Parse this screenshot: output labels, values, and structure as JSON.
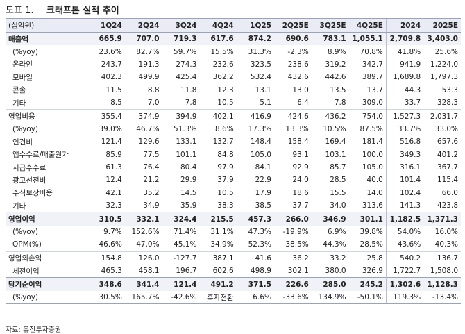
{
  "title": {
    "fig": "도표 1.",
    "text": "크래프톤 실적 추이"
  },
  "unit": "(십억원)",
  "columns": [
    "1Q24",
    "2Q24",
    "3Q24",
    "4Q24",
    "1Q25",
    "2Q25E",
    "3Q25E",
    "4Q25E",
    "2024",
    "2025E"
  ],
  "rows": [
    {
      "label": "매출액",
      "bold": true,
      "values": [
        "665.9",
        "707.0",
        "719.3",
        "617.6",
        "874.2",
        "690.6",
        "783.1",
        "1,055.1",
        "2,709.8",
        "3,403.0"
      ]
    },
    {
      "label": "(%yoy)",
      "values": [
        "23.6%",
        "82.7%",
        "59.7%",
        "15.5%",
        "31.3%",
        "-2.3%",
        "8.9%",
        "70.8%",
        "41.8%",
        "25.6%"
      ]
    },
    {
      "label": "온라인",
      "values": [
        "243.7",
        "191.3",
        "274.3",
        "232.6",
        "323.5",
        "238.6",
        "319.2",
        "342.7",
        "941.9",
        "1,224.0"
      ]
    },
    {
      "label": "모바일",
      "values": [
        "402.3",
        "499.9",
        "425.4",
        "362.2",
        "532.4",
        "432.6",
        "442.6",
        "389.7",
        "1,689.8",
        "1,797.3"
      ]
    },
    {
      "label": "콘솔",
      "values": [
        "11.5",
        "8.8",
        "11.8",
        "12.3",
        "13.1",
        "13.0",
        "13.5",
        "13.7",
        "44.3",
        "53.3"
      ]
    },
    {
      "label": "기타",
      "values": [
        "8.5",
        "7.0",
        "7.8",
        "10.5",
        "5.1",
        "6.4",
        "7.8",
        "309.0",
        "33.7",
        "328.3"
      ]
    },
    {
      "label": "영업비용",
      "sep": "light",
      "values": [
        "355.4",
        "374.9",
        "394.9",
        "402.1",
        "416.9",
        "424.6",
        "436.2",
        "754.0",
        "1,527.3",
        "2,031.7"
      ]
    },
    {
      "label": "(%yoy)",
      "values": [
        "39.0%",
        "46.7%",
        "51.3%",
        "8.6%",
        "17.3%",
        "13.3%",
        "10.5%",
        "87.5%",
        "33.7%",
        "33.0%"
      ]
    },
    {
      "label": "인건비",
      "values": [
        "121.4",
        "129.6",
        "133.1",
        "132.7",
        "148.4",
        "158.4",
        "169.4",
        "181.4",
        "516.8",
        "657.6"
      ]
    },
    {
      "label": "앱수수료/매출원가",
      "values": [
        "85.9",
        "77.5",
        "101.1",
        "84.8",
        "105.0",
        "93.1",
        "103.1",
        "100.0",
        "349.3",
        "401.2"
      ]
    },
    {
      "label": "지급수수료",
      "values": [
        "61.3",
        "76.4",
        "80.4",
        "97.9",
        "84.1",
        "92.9",
        "85.7",
        "105.0",
        "316.1",
        "367.7"
      ]
    },
    {
      "label": "광고선전비",
      "values": [
        "12.4",
        "21.2",
        "29.9",
        "37.9",
        "22.9",
        "24.0",
        "28.5",
        "40.0",
        "101.4",
        "115.4"
      ]
    },
    {
      "label": "주식보상비용",
      "values": [
        "42.1",
        "35.2",
        "14.5",
        "10.5",
        "17.9",
        "18.6",
        "15.5",
        "14.0",
        "102.4",
        "66.0"
      ]
    },
    {
      "label": "기타",
      "values": [
        "32.3",
        "34.9",
        "35.9",
        "38.3",
        "38.5",
        "37.7",
        "34.0",
        "313.6",
        "141.3",
        "423.8"
      ]
    },
    {
      "label": "영업이익",
      "bold": true,
      "sep": "dark",
      "values": [
        "310.5",
        "332.1",
        "324.4",
        "215.5",
        "457.3",
        "266.0",
        "346.9",
        "301.1",
        "1,182.5",
        "1,371.3"
      ]
    },
    {
      "label": "(%yoy)",
      "values": [
        "9.7%",
        "152.6%",
        "71.4%",
        "31.1%",
        "47.3%",
        "-19.9%",
        "6.9%",
        "39.8%",
        "54.0%",
        "16.0%"
      ]
    },
    {
      "label": "OPM(%)",
      "values": [
        "46.6%",
        "47.0%",
        "45.1%",
        "34.9%",
        "52.3%",
        "38.5%",
        "44.3%",
        "28.5%",
        "43.6%",
        "40.3%"
      ]
    },
    {
      "label": "영업외손익",
      "sep": "light",
      "values": [
        "154.8",
        "126.0",
        "-127.7",
        "387.1",
        "41.6",
        "36.2",
        "33.2",
        "25.8",
        "540.2",
        "136.7"
      ]
    },
    {
      "label": "세전이익",
      "values": [
        "465.3",
        "458.1",
        "196.7",
        "602.6",
        "498.9",
        "302.1",
        "380.0",
        "326.9",
        "1,722.7",
        "1,508.0"
      ]
    },
    {
      "label": "당기순이익",
      "bold": true,
      "sep": "dark",
      "values": [
        "348.6",
        "341.4",
        "121.4",
        "491.2",
        "371.5",
        "226.6",
        "285.0",
        "245.2",
        "1,302.6",
        "1,128.3"
      ]
    },
    {
      "label": "(%yoy)",
      "last": true,
      "values": [
        "30.5%",
        "165.7%",
        "-42.6%",
        "흑자전환",
        "6.6%",
        "-33.6%",
        "134.9%",
        "-50.1%",
        "119.3%",
        "-13.4%"
      ]
    }
  ],
  "source": "자료: 유진투자증권"
}
